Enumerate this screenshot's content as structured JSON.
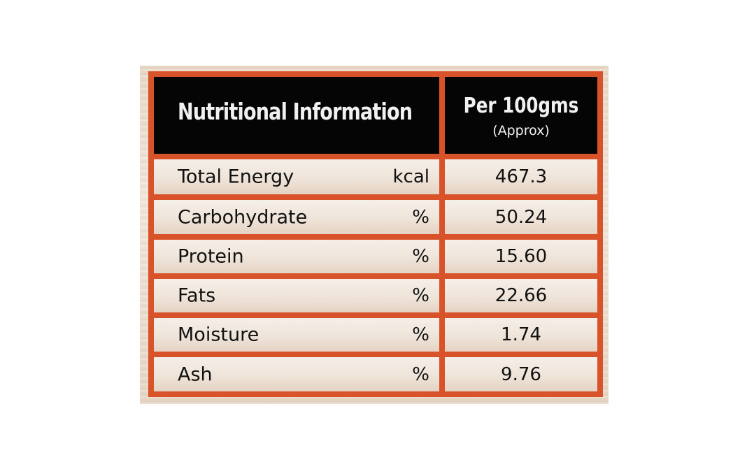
{
  "table": {
    "header": {
      "title": "Nutritional Information",
      "per": "Per 100gms",
      "approx": "(Approx)"
    },
    "rows": [
      {
        "label": "Total Energy",
        "unit": "kcal",
        "value": "467.3"
      },
      {
        "label": "Carbohydrate",
        "unit": "%",
        "value": "50.24"
      },
      {
        "label": "Protein",
        "unit": "%",
        "value": "15.60"
      },
      {
        "label": "Fats",
        "unit": "%",
        "value": "22.66"
      },
      {
        "label": "Moisture",
        "unit": "%",
        "value": "1.74"
      },
      {
        "label": "Ash",
        "unit": "%",
        "value": "9.76"
      }
    ],
    "colors": {
      "border": "#d9532a",
      "header_bg": "#050505",
      "header_text": "#f1f1f1",
      "cell_bg": "#f2e9df"
    }
  }
}
